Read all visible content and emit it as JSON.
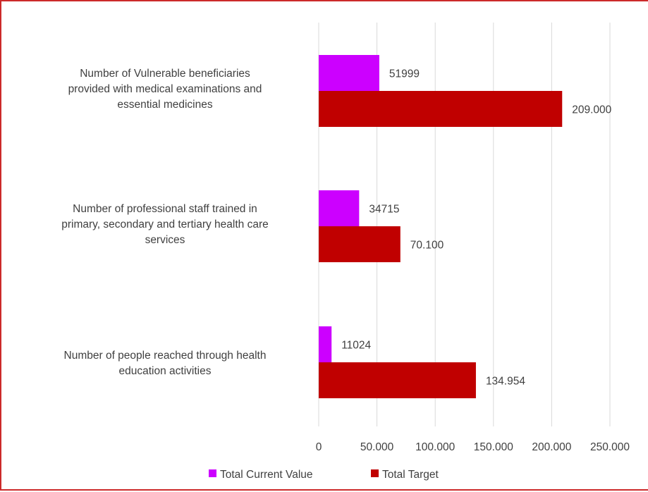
{
  "chart_data": {
    "type": "bar",
    "orientation": "horizontal",
    "categories": [
      "Number of Vulnerable beneficiaries provided with medical examinations and essential medicines",
      "Number of professional staff trained in primary, secondary and tertiary health care services",
      "Number of people reached through health education activities"
    ],
    "series": [
      {
        "name": "Total Current Value",
        "color": "#cc00ff",
        "values": [
          51999,
          34715,
          11024
        ],
        "labels": [
          "51999",
          "34715",
          "11024"
        ]
      },
      {
        "name": "Total Target",
        "color": "#c00000",
        "values": [
          209000,
          70100,
          134954
        ],
        "labels": [
          "209.000",
          "70.100",
          "134.954"
        ]
      }
    ],
    "x_ticks": [
      {
        "value": 0,
        "label": "0"
      },
      {
        "value": 50000,
        "label": "50.000"
      },
      {
        "value": 100000,
        "label": "100.000"
      },
      {
        "value": 150000,
        "label": "150.000"
      },
      {
        "value": 200000,
        "label": "200.000"
      },
      {
        "value": 250000,
        "label": "250.000"
      }
    ],
    "xlim": [
      0,
      250000
    ],
    "grid": "vertical",
    "legend_position": "bottom",
    "title": "",
    "xlabel": "",
    "ylabel": ""
  }
}
